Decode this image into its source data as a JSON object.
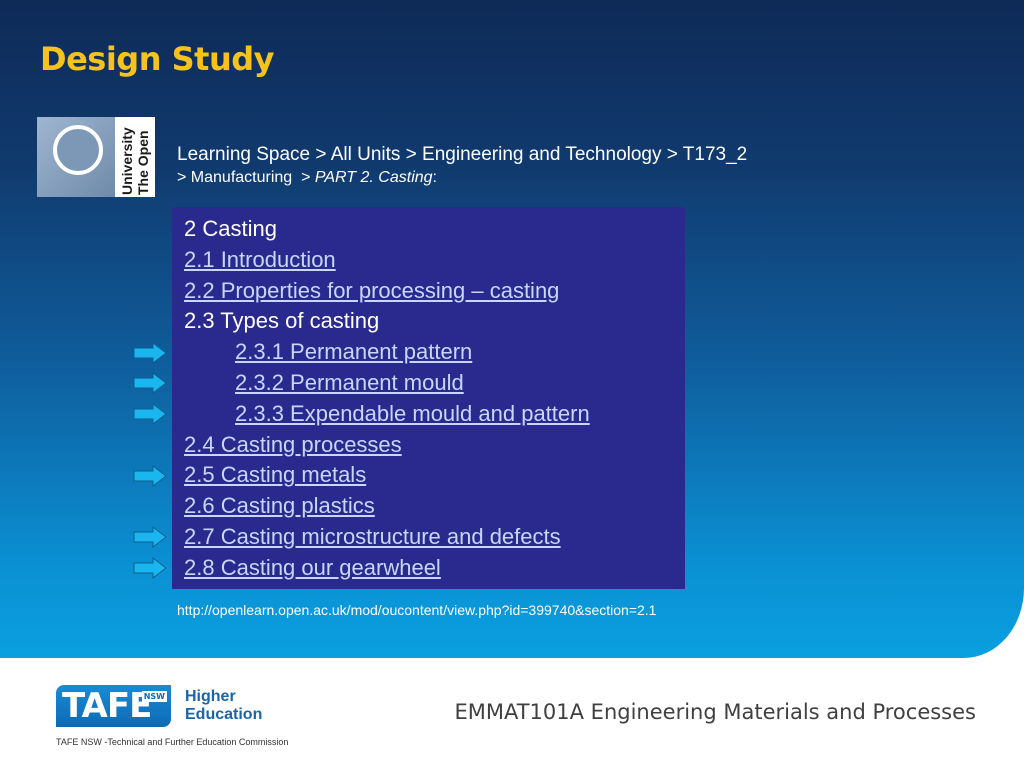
{
  "slide": {
    "title": "Design Study",
    "logo_text": [
      "The Open",
      "University"
    ],
    "breadcrumb": {
      "line1": "Learning Space > All Units > Engineering and Technology > T173_2",
      "line2_prefix": "> Manufacturing  > ",
      "line2_italic": "PART 2. Casting",
      "line2_suffix": ":"
    },
    "toc": [
      {
        "label": "2 Casting",
        "link": false,
        "indent": false,
        "arrow": false
      },
      {
        "label": "2.1 Introduction",
        "link": true,
        "indent": false,
        "arrow": false
      },
      {
        "label": "2.2 Properties for processing – casting",
        "link": true,
        "indent": false,
        "arrow": false
      },
      {
        "label": "2.3 Types of casting",
        "link": false,
        "indent": false,
        "arrow": false
      },
      {
        "label": "2.3.1 Permanent pattern",
        "link": true,
        "indent": true,
        "arrow": true
      },
      {
        "label": "2.3.2 Permanent mould",
        "link": true,
        "indent": true,
        "arrow": true
      },
      {
        "label": "2.3.3 Expendable mould and pattern",
        "link": true,
        "indent": true,
        "arrow": true
      },
      {
        "label": "2.4 Casting processes",
        "link": true,
        "indent": false,
        "arrow": false
      },
      {
        "label": "2.5 Casting metals",
        "link": true,
        "indent": false,
        "arrow": true
      },
      {
        "label": "2.6 Casting plastics",
        "link": true,
        "indent": false,
        "arrow": false
      },
      {
        "label": "2.7 Casting microstructure and defects",
        "link": true,
        "indent": false,
        "arrow": true
      },
      {
        "label": "2.8 Casting our gearwheel",
        "link": true,
        "indent": false,
        "arrow": true
      }
    ],
    "source_url": "http://openlearn.open.ac.uk/mod/oucontent/view.php?id=399740&section=2.1"
  },
  "footer": {
    "tafe_logo": "TAFE",
    "tafe_nsw": "NSW",
    "higher_education": [
      "Higher",
      "Education"
    ],
    "commission": "TAFE NSW -Technical and Further Education Commission",
    "unit_title": "EMMAT101A Engineering Materials and Processes"
  },
  "colors": {
    "title": "#f7c31a",
    "toc_bg": "#2a2a8e",
    "arrow": "#19b6f0"
  },
  "icons": {
    "arrow": "right-arrow-icon"
  }
}
